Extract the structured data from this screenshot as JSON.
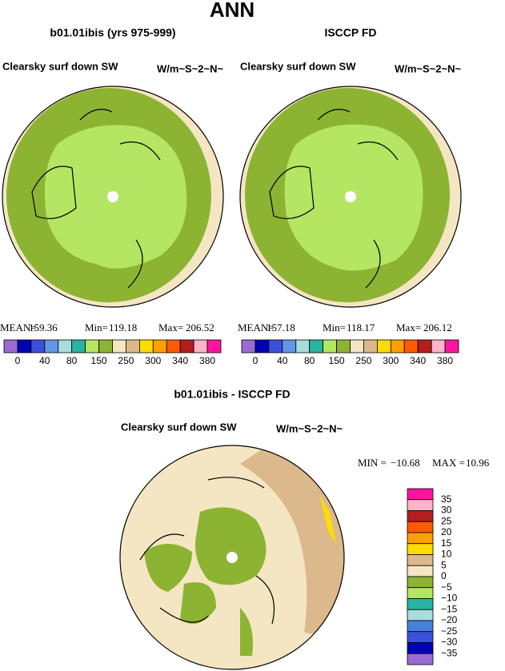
{
  "title": "ANN",
  "panels": [
    {
      "title": "b01.01ibis (yrs 975-999)",
      "left_label": "Clearsky surf down SW",
      "units": "W/m~S~2~N~",
      "stats": [
        {
          "label": "MEAN=",
          "value": 159.36
        },
        {
          "label": "Min=",
          "value": 119.18
        },
        {
          "label": "Max=",
          "value": 206.52
        }
      ]
    },
    {
      "title": "ISCCP FD",
      "left_label": "Clearsky surf down SW",
      "units": "W/m~S~2~N~",
      "stats": [
        {
          "label": "MEAN=",
          "value": 157.18
        },
        {
          "label": "Min=",
          "value": 118.17
        },
        {
          "label": "Max=",
          "value": 206.12
        }
      ]
    }
  ],
  "colorbar": {
    "colors": [
      "#9b6bd4",
      "#0000b4",
      "#3c50dc",
      "#6496e6",
      "#aadcdc",
      "#28b4a0",
      "#b4e664",
      "#8cb432",
      "#f5e6c3",
      "#dcb98c",
      "#ffdc00",
      "#ffa000",
      "#ff5a00",
      "#b41e1e",
      "#ffb4c8",
      "#ff14a0"
    ],
    "labels": [
      0,
      40,
      80,
      150,
      250,
      300,
      340,
      380
    ]
  },
  "difference": {
    "title": "b01.01ibis - ISCCP FD",
    "left_label": "Clearsky surf down SW",
    "units": "W/m~S~2~N~",
    "stats": [
      {
        "label": "MIN =",
        "value": "−10.68"
      },
      {
        "label": "MAX =",
        "value": 10.96
      }
    ],
    "colorbar": {
      "colors": [
        "#ff14a0",
        "#ffb4c8",
        "#b41e1e",
        "#ff5a00",
        "#ffa000",
        "#ffdc00",
        "#dcb98c",
        "#f5e6c3",
        "#8cb432",
        "#b4e664",
        "#28b4a0",
        "#aadcdc",
        "#4682dc",
        "#3c50dc",
        "#0000b4",
        "#9b6bd4"
      ],
      "labels": [
        35,
        30,
        25,
        20,
        15,
        10,
        5,
        0,
        "−5",
        "−10",
        "−15",
        "−20",
        "−25",
        "−30",
        "−35"
      ]
    }
  }
}
